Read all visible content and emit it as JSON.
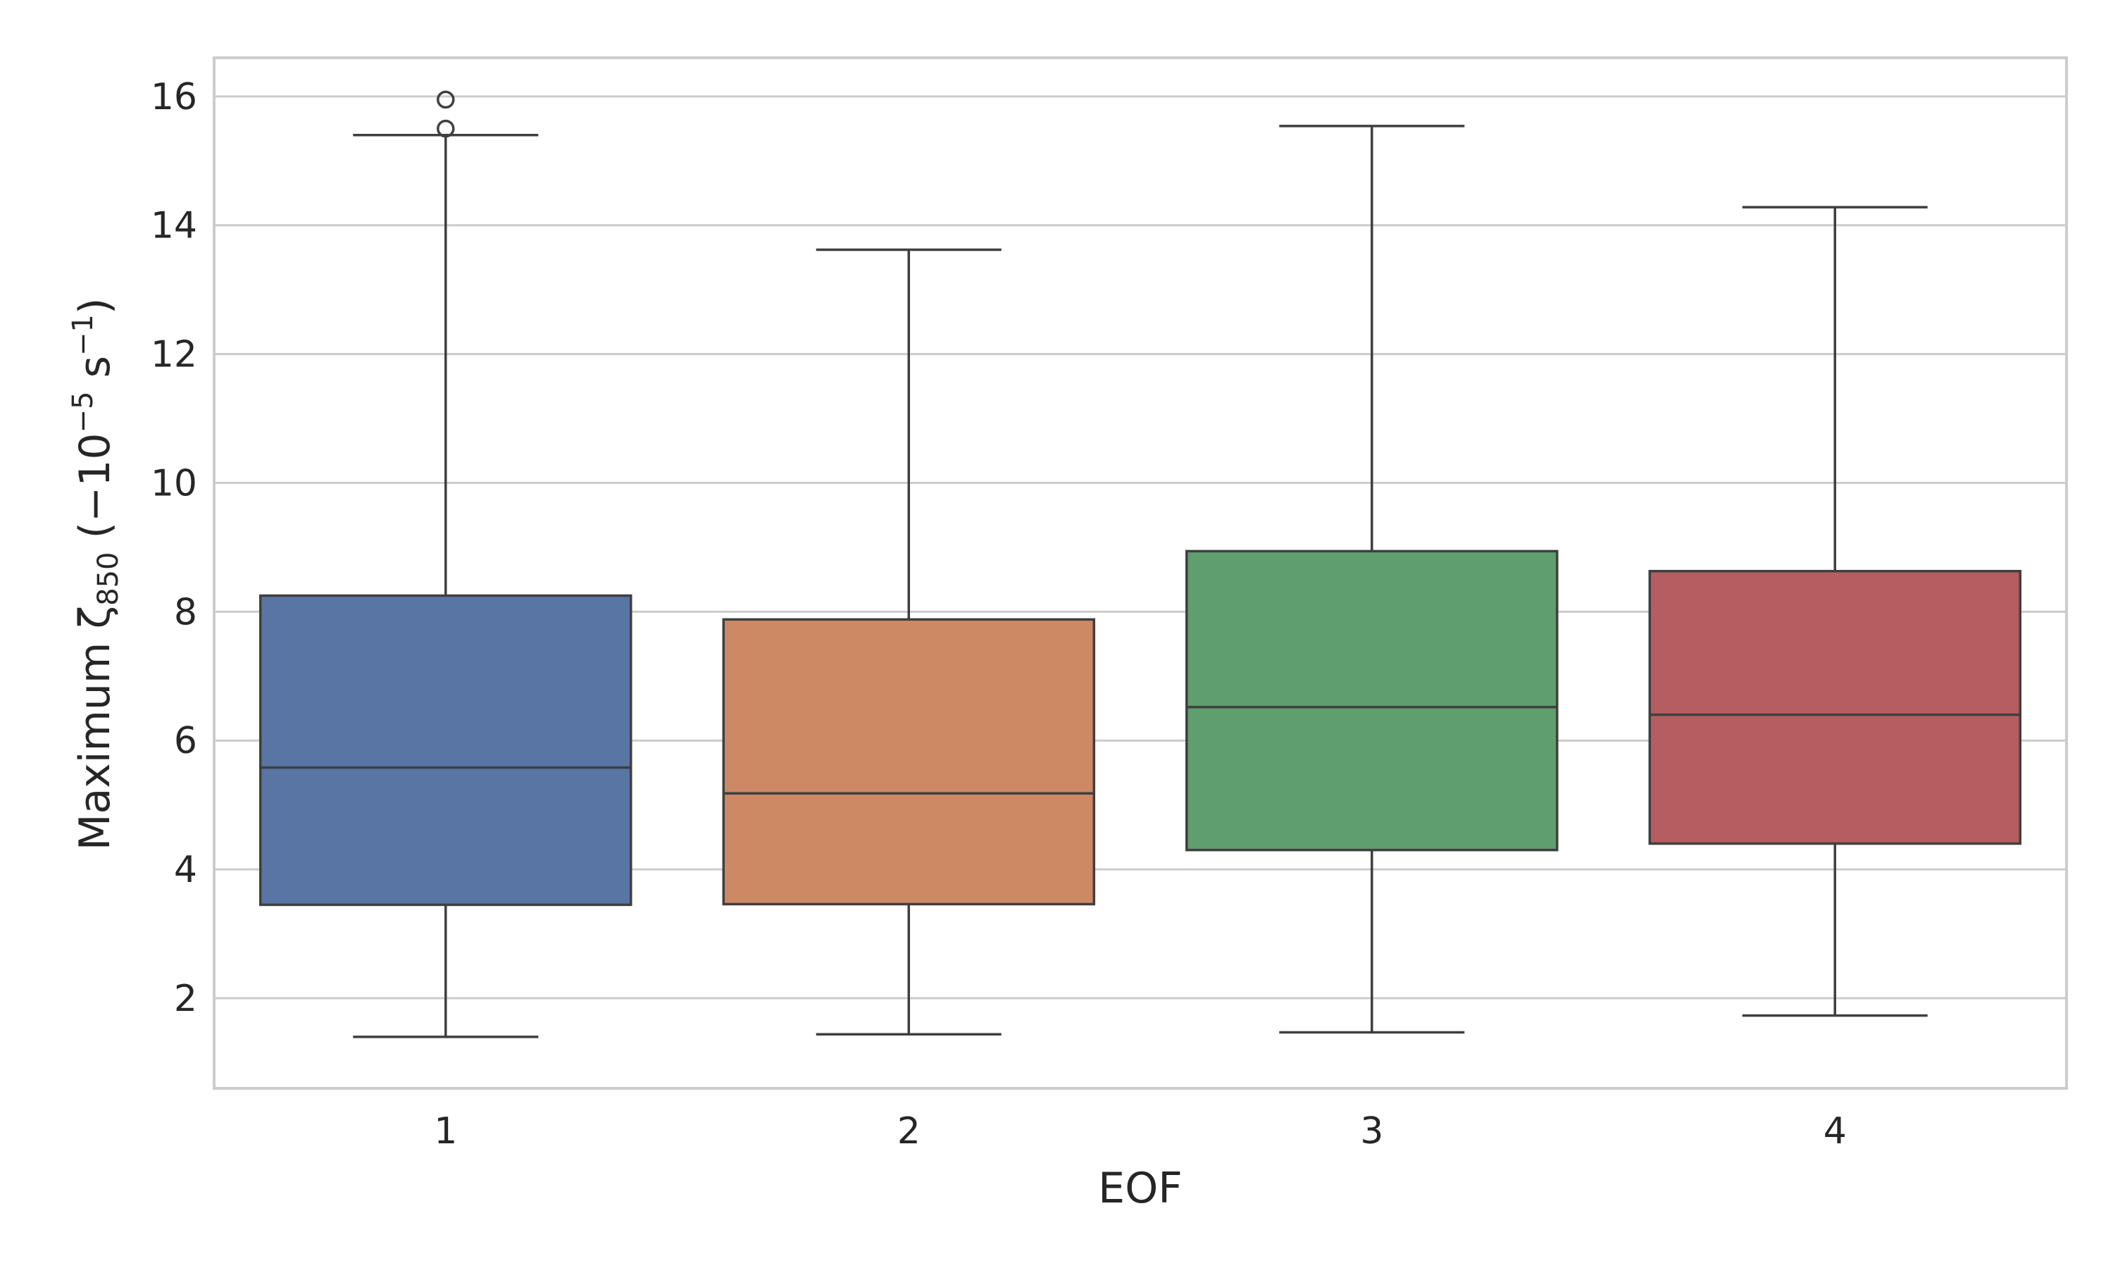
{
  "chart_data": {
    "type": "box",
    "xlabel": "EOF",
    "ylabel": {
      "prefix": "Maximum ζ",
      "subscript": "850",
      "units_open": "  (−10",
      "units_exp1": "−5",
      "units_mid": " s",
      "units_exp2": "−1",
      "units_close": ")"
    },
    "ylim": [
      0.6,
      16.6
    ],
    "yticks": [
      2,
      4,
      6,
      8,
      10,
      12,
      14,
      16
    ],
    "grid": true,
    "categories": [
      "1",
      "2",
      "3",
      "4"
    ],
    "boxes": [
      {
        "category": "1",
        "whisker_low": 1.4,
        "q1": 3.45,
        "median": 5.58,
        "q3": 8.25,
        "whisker_high": 15.4,
        "fliers": [
          15.5,
          15.95
        ],
        "color": "#5875a4"
      },
      {
        "category": "2",
        "whisker_low": 1.44,
        "q1": 3.46,
        "median": 5.18,
        "q3": 7.88,
        "whisker_high": 13.62,
        "fliers": [],
        "color": "#cc8963"
      },
      {
        "category": "3",
        "whisker_low": 1.47,
        "q1": 4.3,
        "median": 6.52,
        "q3": 8.94,
        "whisker_high": 15.54,
        "fliers": [],
        "color": "#5f9e6e"
      },
      {
        "category": "4",
        "whisker_low": 1.73,
        "q1": 4.4,
        "median": 6.4,
        "q3": 8.63,
        "whisker_high": 14.28,
        "fliers": [],
        "color": "#b55d60"
      }
    ]
  }
}
